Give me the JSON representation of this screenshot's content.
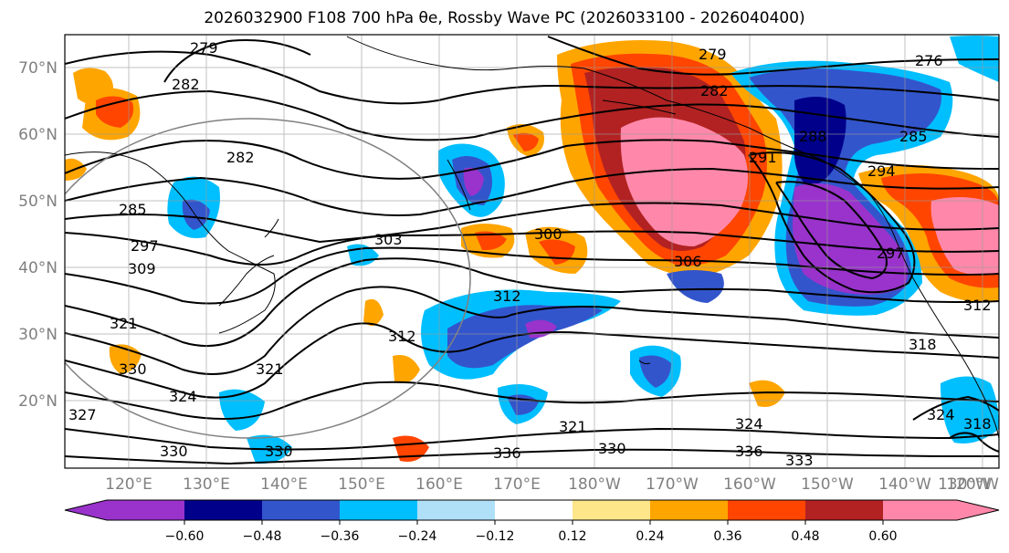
{
  "title": "2026032900 F108 700 hPa θe, Rossby Wave PC (2026033100 - 2026040400)",
  "lat_labels": [
    "70°N",
    "60°N",
    "50°N",
    "40°N",
    "30°N",
    "20°N"
  ],
  "lon_labels": [
    "120°E",
    "130°E",
    "140°E",
    "150°E",
    "160°E",
    "170°E",
    "180°W",
    "170°W",
    "160°W",
    "150°W",
    "140°W",
    "130°W",
    "120°W"
  ],
  "contour_labels": [
    "279",
    "282",
    "285",
    "291",
    "294",
    "297",
    "300",
    "303",
    "306",
    "309",
    "312",
    "318",
    "321",
    "324",
    "327",
    "330",
    "333",
    "336",
    "276",
    "288"
  ],
  "colorbar": {
    "colors": [
      "#9933cc",
      "#00008b",
      "#3355cc",
      "#00bfff",
      "#b0e0f8",
      "#ffffff",
      "#fde68a",
      "#ffa500",
      "#ff4500",
      "#b22222",
      "#ff88aa"
    ],
    "under_color": "#9933cc",
    "over_color": "#ff88aa",
    "tick_labels": [
      "−0.60",
      "−0.48",
      "−0.36",
      "−0.24",
      "−0.12",
      "0.12",
      "0.24",
      "0.36",
      "0.48",
      "0.60"
    ]
  },
  "anomaly_colors": {
    "strong_negative": "#9933cc",
    "negative_dark": "#00008b",
    "negative": "#3355cc",
    "negative_light": "#00bfff",
    "positive_light": "#ffa500",
    "positive": "#ff4500",
    "strong_positive": "#ff88aa"
  }
}
